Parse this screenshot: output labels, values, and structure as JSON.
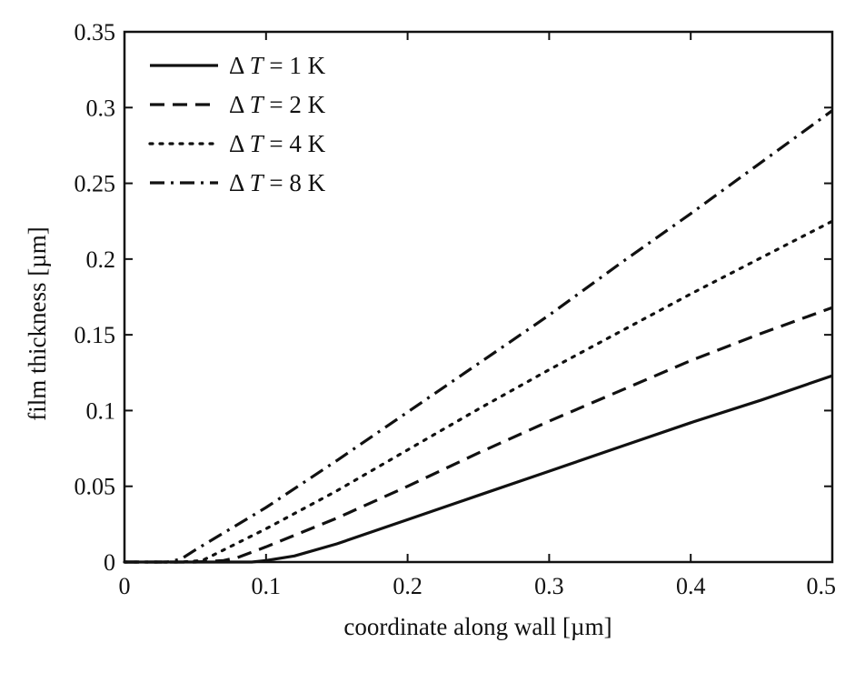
{
  "chart_data": {
    "type": "line",
    "title": "",
    "xlabel": "coordinate along wall [µm]",
    "ylabel": "film thickness [µm]",
    "xlim": [
      0,
      0.5
    ],
    "ylim": [
      0,
      0.35
    ],
    "xticks": [
      0,
      0.1,
      0.2,
      0.3,
      0.4,
      0.5
    ],
    "xtick_labels": [
      "0",
      "0.1",
      "0.2",
      "0.3",
      "0.4",
      "0.5"
    ],
    "yticks": [
      0,
      0.05,
      0.1,
      0.15,
      0.2,
      0.25,
      0.3,
      0.35
    ],
    "ytick_labels": [
      "0",
      "0.05",
      "0.1",
      "0.15",
      "0.2",
      "0.25",
      "0.3",
      "0.35"
    ],
    "grid": false,
    "legend_position": "top-left",
    "series": [
      {
        "name": "Δ T = 1 K",
        "legend_prefix": "Δ ",
        "legend_var": "T",
        "legend_suffix": " = 1 K",
        "style": "solid",
        "x": [
          0,
          0.05,
          0.09,
          0.1,
          0.12,
          0.15,
          0.2,
          0.25,
          0.3,
          0.35,
          0.4,
          0.45,
          0.5
        ],
        "y": [
          0,
          0,
          0,
          0.001,
          0.004,
          0.012,
          0.028,
          0.044,
          0.06,
          0.076,
          0.092,
          0.107,
          0.123
        ]
      },
      {
        "name": "Δ T = 2 K",
        "legend_prefix": "Δ ",
        "legend_var": "T",
        "legend_suffix": " = 2 K",
        "style": "dashed",
        "x": [
          0,
          0.05,
          0.07,
          0.08,
          0.1,
          0.15,
          0.2,
          0.25,
          0.3,
          0.35,
          0.4,
          0.45,
          0.5
        ],
        "y": [
          0,
          0,
          0.001,
          0.003,
          0.01,
          0.029,
          0.05,
          0.072,
          0.093,
          0.113,
          0.133,
          0.151,
          0.168
        ]
      },
      {
        "name": "Δ T = 4 K",
        "legend_prefix": "Δ ",
        "legend_var": "T",
        "legend_suffix": " = 4 K",
        "style": "dotted",
        "x": [
          0,
          0.04,
          0.055,
          0.07,
          0.1,
          0.15,
          0.2,
          0.25,
          0.3,
          0.35,
          0.4,
          0.45,
          0.5
        ],
        "y": [
          0,
          0,
          0.001,
          0.008,
          0.022,
          0.047,
          0.074,
          0.101,
          0.127,
          0.152,
          0.177,
          0.201,
          0.225
        ]
      },
      {
        "name": "Δ T = 8 K",
        "legend_prefix": "Δ ",
        "legend_var": "T",
        "legend_suffix": " = 8 K",
        "style": "dashdot",
        "x": [
          0,
          0.03,
          0.04,
          0.05,
          0.1,
          0.15,
          0.2,
          0.25,
          0.3,
          0.35,
          0.4,
          0.45,
          0.5
        ],
        "y": [
          0,
          0,
          0.002,
          0.008,
          0.036,
          0.067,
          0.099,
          0.131,
          0.163,
          0.197,
          0.23,
          0.264,
          0.298
        ]
      }
    ]
  }
}
